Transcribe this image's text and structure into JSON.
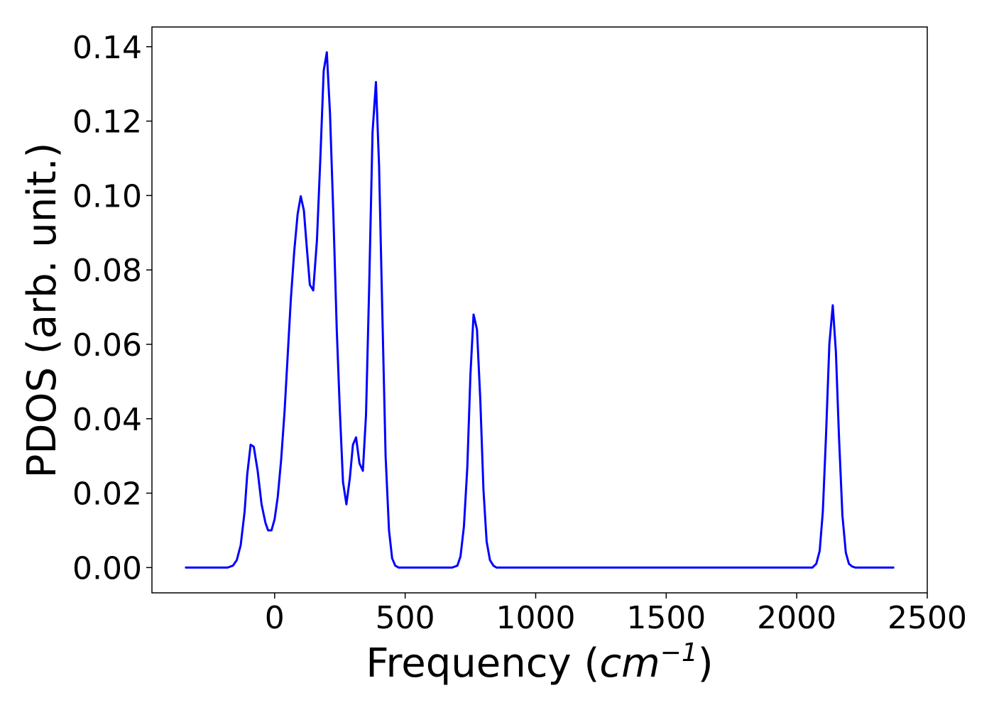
{
  "chart_data": {
    "type": "line",
    "title": "",
    "xlabel": "Frequency (",
    "xlabel_unit_base": "cm",
    "xlabel_unit_exp": "−1",
    "xlabel_close": ")",
    "ylabel": "PDOS (arb. unit.)",
    "xlim": [
      -470,
      2500
    ],
    "ylim": [
      -0.0068,
      0.1453
    ],
    "xticks": [
      0,
      500,
      1000,
      1500,
      2000,
      2500
    ],
    "xtick_labels": [
      "0",
      "500",
      "1000",
      "1500",
      "2000",
      "2500"
    ],
    "yticks": [
      0.0,
      0.02,
      0.04,
      0.06,
      0.08,
      0.1,
      0.12,
      0.14
    ],
    "ytick_labels": [
      "0.00",
      "0.02",
      "0.04",
      "0.06",
      "0.08",
      "0.10",
      "0.12",
      "0.14"
    ],
    "grid": false,
    "legend": "none",
    "series": [
      {
        "color": "#0000ff",
        "x": [
          -340,
          -180,
          -160,
          -145,
          -130,
          -115,
          -105,
          -92,
          -80,
          -65,
          -50,
          -35,
          -25,
          -12,
          0,
          12,
          25,
          38,
          50,
          62,
          75,
          88,
          100,
          112,
          122,
          135,
          148,
          162,
          175,
          188,
          200,
          212,
          225,
          238,
          250,
          262,
          275,
          288,
          300,
          312,
          325,
          338,
          350,
          362,
          375,
          388,
          400,
          412,
          425,
          438,
          450,
          462,
          475,
          488,
          500,
          520,
          600,
          680,
          700,
          712,
          725,
          738,
          750,
          762,
          775,
          788,
          800,
          812,
          825,
          838,
          850,
          862,
          880,
          1000,
          1500,
          2000,
          2060,
          2075,
          2088,
          2100,
          2112,
          2125,
          2138,
          2150,
          2162,
          2175,
          2188,
          2200,
          2212,
          2225,
          2250,
          2370
        ],
        "values": [
          0.0,
          0.0,
          0.0005,
          0.002,
          0.006,
          0.015,
          0.025,
          0.033,
          0.0325,
          0.026,
          0.017,
          0.012,
          0.01,
          0.01,
          0.013,
          0.019,
          0.029,
          0.042,
          0.057,
          0.072,
          0.085,
          0.095,
          0.0998,
          0.096,
          0.087,
          0.076,
          0.0745,
          0.088,
          0.11,
          0.1335,
          0.1385,
          0.122,
          0.095,
          0.064,
          0.042,
          0.023,
          0.017,
          0.024,
          0.033,
          0.035,
          0.028,
          0.026,
          0.041,
          0.075,
          0.117,
          0.1305,
          0.108,
          0.07,
          0.03,
          0.01,
          0.0025,
          0.0005,
          0.0,
          0.0,
          0.0,
          0.0,
          0.0,
          0.0,
          0.0005,
          0.003,
          0.011,
          0.027,
          0.052,
          0.068,
          0.064,
          0.045,
          0.021,
          0.007,
          0.002,
          0.0005,
          0.0,
          0.0,
          0.0,
          0.0,
          0.0,
          0.0,
          0.0,
          0.001,
          0.0045,
          0.015,
          0.035,
          0.06,
          0.0705,
          0.058,
          0.035,
          0.014,
          0.004,
          0.001,
          0.0003,
          0.0,
          0.0,
          0.0
        ]
      }
    ]
  }
}
